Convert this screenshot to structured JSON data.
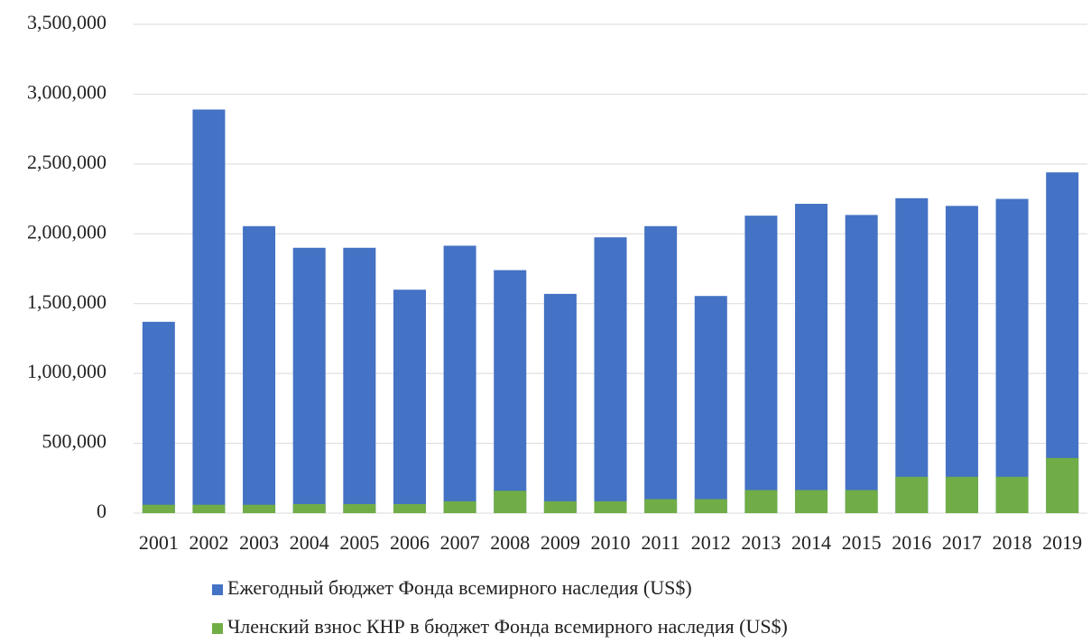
{
  "chart_data": {
    "type": "bar",
    "categories": [
      "2001",
      "2002",
      "2003",
      "2004",
      "2005",
      "2006",
      "2007",
      "2008",
      "2009",
      "2010",
      "2011",
      "2012",
      "2013",
      "2014",
      "2015",
      "2016",
      "2017",
      "2018",
      "2019"
    ],
    "series": [
      {
        "name": "Ежегодный бюджет Фонда всемирного наследия (US$)",
        "color": "#4472c4",
        "values": [
          1370000,
          2890000,
          2055000,
          1900000,
          1900000,
          1600000,
          1915000,
          1740000,
          1570000,
          1975000,
          2055000,
          1555000,
          2130000,
          2215000,
          2135000,
          2255000,
          2200000,
          2250000,
          2440000
        ]
      },
      {
        "name": "Членский взнос КНР в бюджет Фонда всемирного наследия (US$)",
        "color": "#70ad47",
        "values": [
          60000,
          60000,
          60000,
          65000,
          65000,
          65000,
          85000,
          160000,
          85000,
          85000,
          100000,
          100000,
          165000,
          165000,
          165000,
          260000,
          260000,
          260000,
          395000
        ]
      }
    ],
    "ylim": [
      0,
      3500000
    ],
    "yticks": [
      0,
      {
        "value": 500000,
        "label": "500,000"
      },
      {
        "value": 1000000,
        "label": "1,000,000"
      },
      {
        "value": 1500000,
        "label": "1,500,000"
      },
      {
        "value": 2000000,
        "label": "2,000,000"
      },
      {
        "value": 2500000,
        "label": "2,500,000"
      },
      {
        "value": 3000000,
        "label": "3,000,000"
      },
      {
        "value": 3500000,
        "label": "3,500,000"
      }
    ],
    "grid": true,
    "legend": "bottom"
  }
}
